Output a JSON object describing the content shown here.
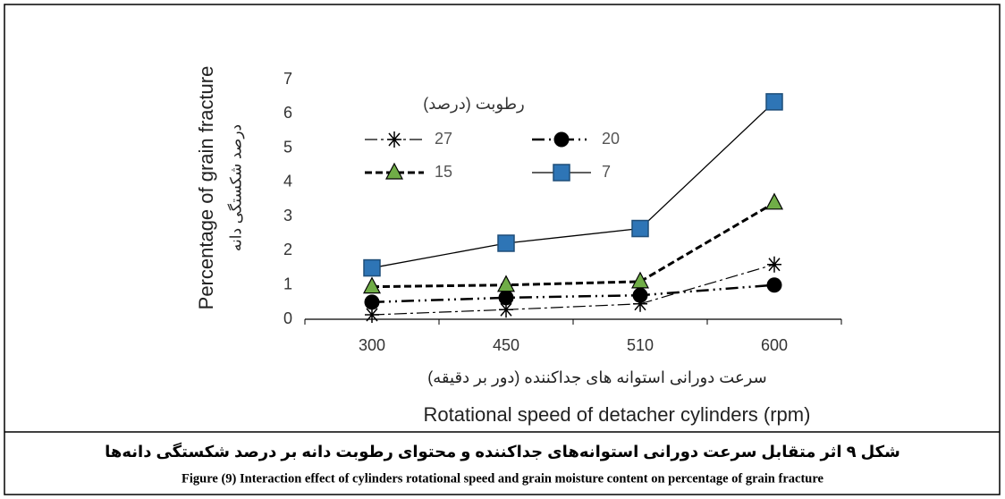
{
  "chart_data": {
    "type": "line",
    "y_label": "Percentage of grain fracture",
    "y_label_fa": "درصد شکستگی دانه",
    "x_label_fa": "سرعت دورانی استوانه های جداکننده (دور بر دقیقه)",
    "x_label": "Rotational speed of detacher cylinders (rpm)",
    "legend_title": "رطوبت (درصد)",
    "categories": [
      "300",
      "450",
      "510",
      "600"
    ],
    "series": [
      {
        "name": "27",
        "color": "#000000",
        "marker": "asterisk",
        "marker_color": "#000000",
        "line_style": "dash-dot",
        "values": [
          0.13,
          0.28,
          0.45,
          1.6
        ]
      },
      {
        "name": "20",
        "color": "#000000",
        "marker": "circle",
        "marker_color": "#000000",
        "line_style": "dash-dot-dot",
        "values": [
          0.5,
          0.63,
          0.7,
          1.0
        ]
      },
      {
        "name": "15",
        "color": "#000000",
        "marker": "triangle",
        "marker_color": "#70ad47",
        "line_style": "dashed",
        "values": [
          0.95,
          1.0,
          1.1,
          3.4
        ]
      },
      {
        "name": "7",
        "color": "#000000",
        "marker": "square",
        "marker_color": "#2e75b6",
        "line_style": "solid",
        "values": [
          1.5,
          2.22,
          2.65,
          6.35
        ]
      }
    ],
    "ylim": [
      0,
      7
    ],
    "yticks": [
      0,
      1,
      2,
      3,
      4,
      5,
      6,
      7
    ],
    "grid": false
  },
  "caption": {
    "fa": "شکل ۹ اثر متقابل سرعت دورانی استوانه‌های جداکننده و محتوای رطوبت دانه بر درصد شکستگی دانه‌ها",
    "en": "Figure (9) Interaction effect of cylinders rotational speed and grain moisture content on percentage of grain fracture"
  }
}
